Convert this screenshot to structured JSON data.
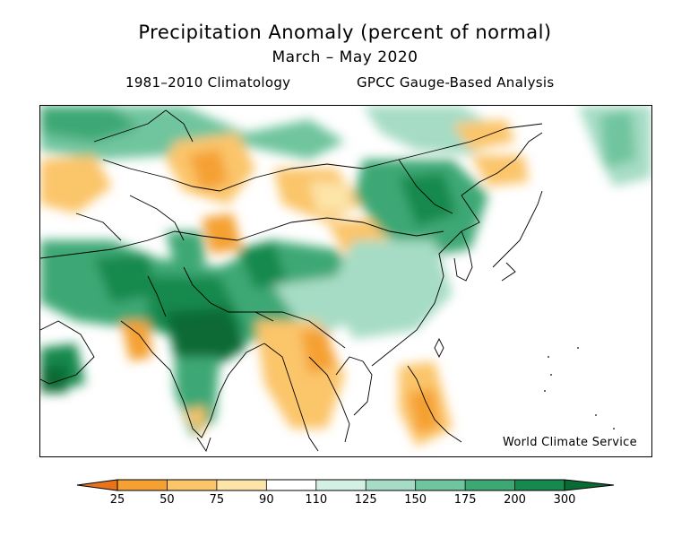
{
  "header": {
    "title": "Precipitation Anomaly (percent of normal)",
    "period": "March – May 2020",
    "climatology": "1981–2010 Climatology",
    "analysis": "GPCC Gauge-Based Analysis"
  },
  "map": {
    "watermark": "World Climate Service"
  },
  "colorbar": {
    "ticks": [
      "25",
      "50",
      "75",
      "90",
      "110",
      "125",
      "150",
      "175",
      "200",
      "300"
    ],
    "colors": [
      "#e8731a",
      "#f5a033",
      "#fbc56a",
      "#fde4a8",
      "#ffffff",
      "#d4efe4",
      "#a6dcc5",
      "#6fc59e",
      "#3ea874",
      "#18894e",
      "#0a6a34"
    ]
  }
}
